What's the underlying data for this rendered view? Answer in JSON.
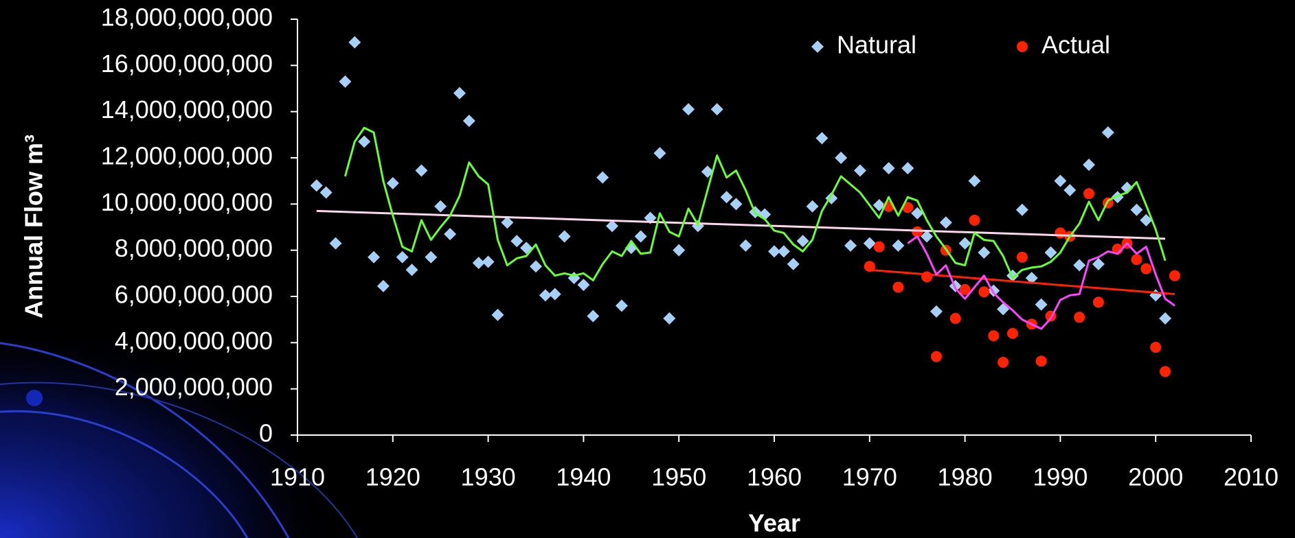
{
  "chart_data": {
    "type": "scatter",
    "x_label": "Year",
    "y_label": "Annual Flow m³",
    "xlim": [
      1910,
      2010
    ],
    "xticks": [
      1910,
      1920,
      1930,
      1940,
      1950,
      1960,
      1970,
      1980,
      1990,
      2000,
      2010
    ],
    "ylim": [
      0,
      18000000000.0
    ],
    "yticks": [
      0,
      {
        "value": 2000000000.0,
        "label": "2,000,000,000"
      },
      {
        "value": 4000000000.0,
        "label": "4,000,000,000"
      },
      {
        "value": 6000000000.0,
        "label": "6,000,000,000"
      },
      {
        "value": 8000000000.0,
        "label": "8,000,000,000"
      },
      {
        "value": 10000000000.0,
        "label": "10,000,000,000"
      },
      {
        "value": 12000000000.0,
        "label": "12,000,000,000"
      },
      {
        "value": 14000000000.0,
        "label": "14,000,000,000"
      },
      {
        "value": 16000000000.0,
        "label": "16,000,000,000"
      },
      {
        "value": 18000000000.0,
        "label": "18,000,000,000"
      }
    ],
    "grid": false,
    "legend": "top-right",
    "series": [
      {
        "name": "Natural",
        "kind": "scatter",
        "marker": "diamond",
        "color": "#a6d0f7",
        "x": [
          1912,
          1913,
          1914,
          1915,
          1916,
          1917,
          1918,
          1919,
          1920,
          1921,
          1922,
          1923,
          1924,
          1925,
          1926,
          1927,
          1928,
          1929,
          1930,
          1931,
          1932,
          1933,
          1934,
          1935,
          1936,
          1937,
          1938,
          1939,
          1940,
          1941,
          1942,
          1943,
          1944,
          1945,
          1946,
          1947,
          1948,
          1949,
          1950,
          1951,
          1952,
          1953,
          1954,
          1955,
          1956,
          1957,
          1958,
          1959,
          1960,
          1961,
          1962,
          1963,
          1964,
          1965,
          1966,
          1967,
          1968,
          1969,
          1970,
          1971,
          1972,
          1973,
          1974,
          1975,
          1976,
          1977,
          1978,
          1979,
          1980,
          1981,
          1982,
          1983,
          1984,
          1985,
          1986,
          1987,
          1988,
          1989,
          1990,
          1991,
          1992,
          1993,
          1994,
          1995,
          1996,
          1997,
          1998,
          1999,
          2000,
          2001
        ],
        "values": [
          10800000000.0,
          10500000000.0,
          8300000000.0,
          15300000000.0,
          17000000000.0,
          12700000000.0,
          7700000000.0,
          6450000000.0,
          10900000000.0,
          7700000000.0,
          7150000000.0,
          11450000000.0,
          7700000000.0,
          9900000000.0,
          8700000000.0,
          14800000000.0,
          13600000000.0,
          7450000000.0,
          7500000000.0,
          5200000000.0,
          9200000000.0,
          8400000000.0,
          8100000000.0,
          7300000000.0,
          6050000000.0,
          6100000000.0,
          8600000000.0,
          6800000000.0,
          6500000000.0,
          5150000000.0,
          11150000000.0,
          9050000000.0,
          5600000000.0,
          8100000000.0,
          8600000000.0,
          9400000000.0,
          12200000000.0,
          5050000000.0,
          8000000000.0,
          14100000000.0,
          9050000000.0,
          11400000000.0,
          14100000000.0,
          10300000000.0,
          10000000000.0,
          8200000000.0,
          9650000000.0,
          9550000000.0,
          7950000000.0,
          7950000000.0,
          7400000000.0,
          8400000000.0,
          9900000000.0,
          12850000000.0,
          10250000000.0,
          12000000000.0,
          8200000000.0,
          11450000000.0,
          8300000000.0,
          9950000000.0,
          11550000000.0,
          8200000000.0,
          11550000000.0,
          9600000000.0,
          8600000000.0,
          5350000000.0,
          9200000000.0,
          6450000000.0,
          8300000000.0,
          11000000000.0,
          7900000000.0,
          6250000000.0,
          5450000000.0,
          6900000000.0,
          9750000000.0,
          6800000000.0,
          5650000000.0,
          7900000000.0,
          11000000000.0,
          10600000000.0,
          7350000000.0,
          11700000000.0,
          7400000000.0,
          13100000000.0,
          10300000000.0,
          10700000000.0,
          9750000000.0,
          9300000000.0,
          6050000000.0,
          5050000000.0
        ]
      },
      {
        "name": "Actual",
        "kind": "scatter",
        "marker": "circle",
        "color": "#ff2200",
        "x": [
          1970,
          1971,
          1972,
          1973,
          1974,
          1975,
          1976,
          1977,
          1978,
          1979,
          1980,
          1981,
          1982,
          1983,
          1984,
          1985,
          1986,
          1987,
          1988,
          1989,
          1990,
          1991,
          1992,
          1993,
          1994,
          1995,
          1996,
          1997,
          1998,
          1999,
          2000,
          2001,
          2002
        ],
        "values": [
          7300000000.0,
          8150000000.0,
          9900000000.0,
          6400000000.0,
          9850000000.0,
          8800000000.0,
          6850000000.0,
          3400000000.0,
          8000000000.0,
          5050000000.0,
          6300000000.0,
          9300000000.0,
          6200000000.0,
          4300000000.0,
          3150000000.0,
          4400000000.0,
          7700000000.0,
          4800000000.0,
          3200000000.0,
          5150000000.0,
          8750000000.0,
          8600000000.0,
          5100000000.0,
          10450000000.0,
          5750000000.0,
          10050000000.0,
          8050000000.0,
          8300000000.0,
          7600000000.0,
          7200000000.0,
          3800000000.0,
          2750000000.0,
          6900000000.0
        ]
      },
      {
        "kind": "line",
        "color": "#ffd6ee",
        "width": 3,
        "x": [
          1912,
          2001
        ],
        "values": [
          9700000000.0,
          8500000000.0
        ]
      },
      {
        "kind": "line",
        "color": "#ff2200",
        "width": 3,
        "x": [
          1970,
          2002
        ],
        "values": [
          7150000000.0,
          6100000000.0
        ]
      },
      {
        "kind": "line",
        "color": "#66ff33",
        "width": 3,
        "x": [
          1915,
          1916,
          1917,
          1918,
          1919,
          1920,
          1921,
          1922,
          1923,
          1924,
          1925,
          1926,
          1927,
          1928,
          1929,
          1930,
          1931,
          1932,
          1933,
          1934,
          1935,
          1936,
          1937,
          1938,
          1939,
          1940,
          1941,
          1942,
          1943,
          1944,
          1945,
          1946,
          1947,
          1948,
          1949,
          1950,
          1951,
          1952,
          1953,
          1954,
          1955,
          1956,
          1957,
          1958,
          1959,
          1960,
          1961,
          1962,
          1963,
          1964,
          1965,
          1966,
          1967,
          1968,
          1969,
          1970,
          1971,
          1972,
          1973,
          1974,
          1975,
          1976,
          1977,
          1978,
          1979,
          1980,
          1981,
          1982,
          1983,
          1984,
          1985,
          1986,
          1987,
          1988,
          1989,
          1990,
          1991,
          1992,
          1993,
          1994,
          1995,
          1996,
          1997,
          1998,
          1999,
          2000,
          2001
        ],
        "values": [
          11200000000.0,
          12700000000.0,
          13300000000.0,
          13100000000.0,
          11000000000.0,
          9500000000.0,
          8150000000.0,
          7950000000.0,
          9300000000.0,
          8450000000.0,
          9000000000.0,
          9500000000.0,
          10350000000.0,
          11800000000.0,
          11200000000.0,
          10850000000.0,
          8450000000.0,
          7350000000.0,
          7650000000.0,
          7750000000.0,
          8250000000.0,
          7350000000.0,
          6900000000.0,
          7000000000.0,
          6900000000.0,
          7000000000.0,
          6700000000.0,
          7400000000.0,
          7950000000.0,
          7750000000.0,
          8400000000.0,
          7850000000.0,
          7900000000.0,
          9600000000.0,
          8800000000.0,
          8600000000.0,
          9800000000.0,
          9100000000.0,
          10600000000.0,
          12100000000.0,
          11150000000.0,
          11450000000.0,
          10600000000.0,
          9600000000.0,
          9350000000.0,
          8850000000.0,
          8750000000.0,
          8250000000.0,
          7950000000.0,
          8450000000.0,
          9700000000.0,
          10400000000.0,
          11200000000.0,
          10850000000.0,
          10500000000.0,
          9950000000.0,
          9400000000.0,
          10300000000.0,
          9500000000.0,
          10300000000.0,
          10150000000.0,
          9300000000.0,
          8600000000.0,
          8050000000.0,
          7450000000.0,
          7350000000.0,
          8750000000.0,
          8450000000.0,
          8400000000.0,
          7750000000.0,
          6800000000.0,
          7150000000.0,
          7250000000.0,
          7300000000.0,
          7500000000.0,
          7900000000.0,
          8600000000.0,
          9150000000.0,
          10100000000.0,
          9300000000.0,
          10150000000.0,
          10350000000.0,
          10500000000.0,
          10950000000.0,
          9950000000.0,
          8900000000.0,
          7550000000.0
        ]
      },
      {
        "kind": "line",
        "color": "#ff44ff",
        "width": 3,
        "x": [
          1974,
          1975,
          1976,
          1977,
          1978,
          1979,
          1980,
          1981,
          1982,
          1983,
          1984,
          1985,
          1986,
          1987,
          1988,
          1989,
          1990,
          1991,
          1992,
          1993,
          1994,
          1995,
          1996,
          1997,
          1998,
          1999,
          2000,
          2001,
          2002
        ],
        "values": [
          8300000000.0,
          8600000000.0,
          7850000000.0,
          6950000000.0,
          7350000000.0,
          6350000000.0,
          5900000000.0,
          6400000000.0,
          6900000000.0,
          6150000000.0,
          5750000000.0,
          5400000000.0,
          5000000000.0,
          4800000000.0,
          4600000000.0,
          5050000000.0,
          5850000000.0,
          6050000000.0,
          6100000000.0,
          7550000000.0,
          7700000000.0,
          7950000000.0,
          7850000000.0,
          8300000000.0,
          7850000000.0,
          8150000000.0,
          6950000000.0,
          5900000000.0,
          5600000000.0
        ]
      }
    ]
  }
}
